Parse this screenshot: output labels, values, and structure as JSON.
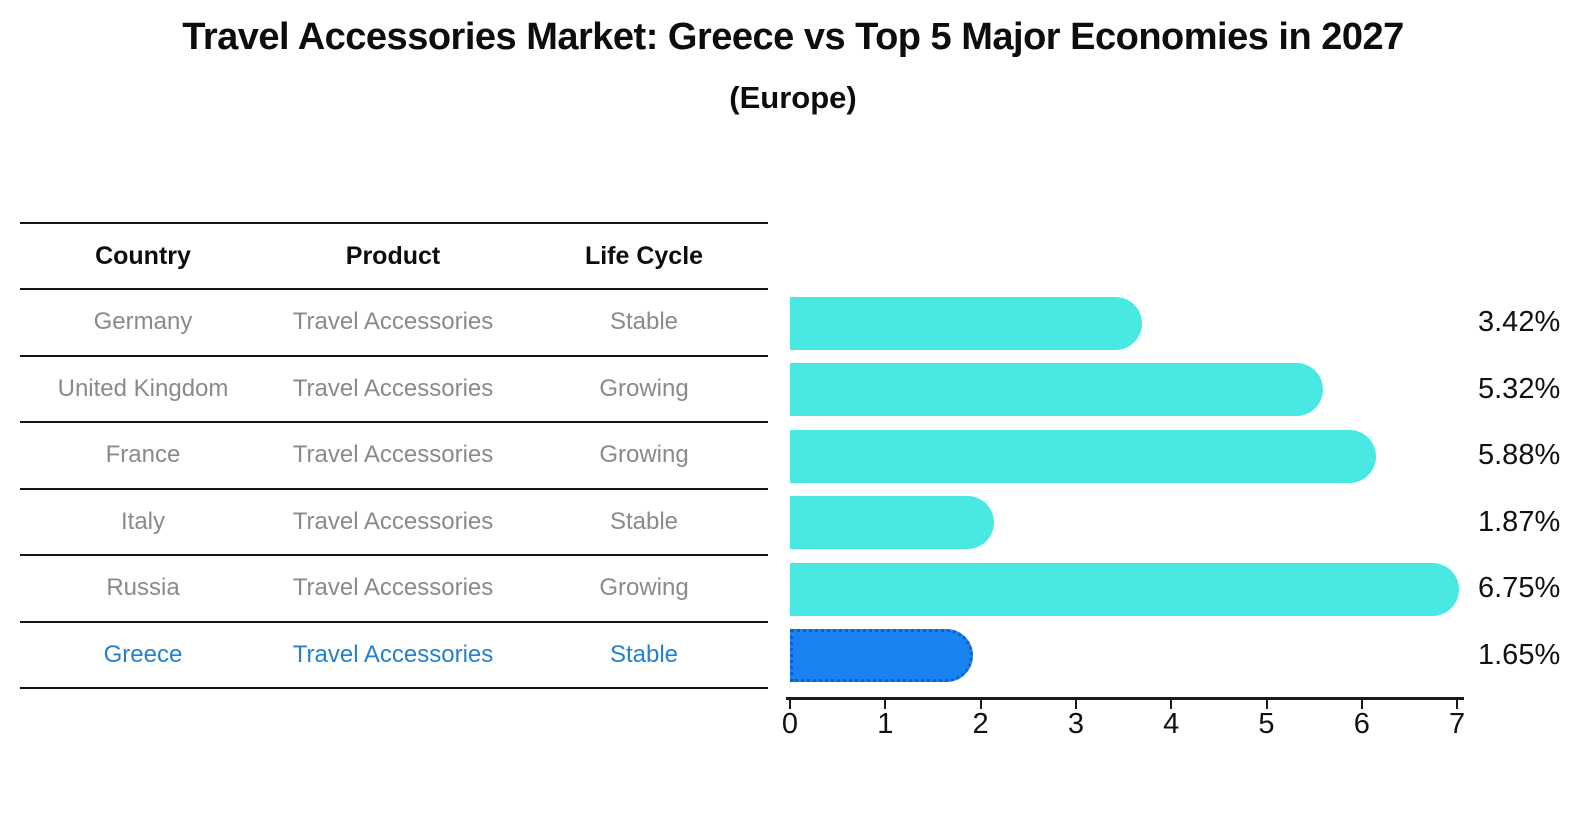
{
  "title": "Travel Accessories Market: Greece vs Top 5 Major Economies in 2027",
  "subtitle": "(Europe)",
  "table": {
    "headers": [
      "Country",
      "Product",
      "Life Cycle"
    ],
    "rows": [
      {
        "country": "Germany",
        "product": "Travel Accessories",
        "life_cycle": "Stable",
        "highlight": false
      },
      {
        "country": "United Kingdom",
        "product": "Travel Accessories",
        "life_cycle": "Growing",
        "highlight": false
      },
      {
        "country": "France",
        "product": "Travel Accessories",
        "life_cycle": "Growing",
        "highlight": false
      },
      {
        "country": "Italy",
        "product": "Travel Accessories",
        "life_cycle": "Stable",
        "highlight": false
      },
      {
        "country": "Russia",
        "product": "Travel Accessories",
        "life_cycle": "Growing",
        "highlight": false
      },
      {
        "country": "Greece",
        "product": "Travel Accessories",
        "life_cycle": "Stable",
        "highlight": true
      }
    ]
  },
  "chart_data": {
    "type": "bar",
    "orientation": "horizontal",
    "title": "Travel Accessories Market: Greece vs Top 5 Major Economies in 2027 (Europe)",
    "categories": [
      "Germany",
      "United Kingdom",
      "France",
      "Italy",
      "Russia",
      "Greece"
    ],
    "values": [
      3.42,
      5.32,
      5.88,
      1.87,
      6.75,
      1.65
    ],
    "value_labels": [
      "3.42%",
      "5.32%",
      "5.88%",
      "1.87%",
      "6.75%",
      "1.65%"
    ],
    "highlight_index": 5,
    "x_ticks": [
      "0",
      "1",
      "2",
      "3",
      "4",
      "5",
      "6",
      "7"
    ],
    "xlim": [
      0,
      7
    ],
    "grid": false,
    "legend": "none",
    "bar_color": "#4ae8e2",
    "highlight_bar_color": "#1b83f1",
    "highlight_text_color": "#2680cc",
    "row_text_color": "#8a8a8a"
  }
}
